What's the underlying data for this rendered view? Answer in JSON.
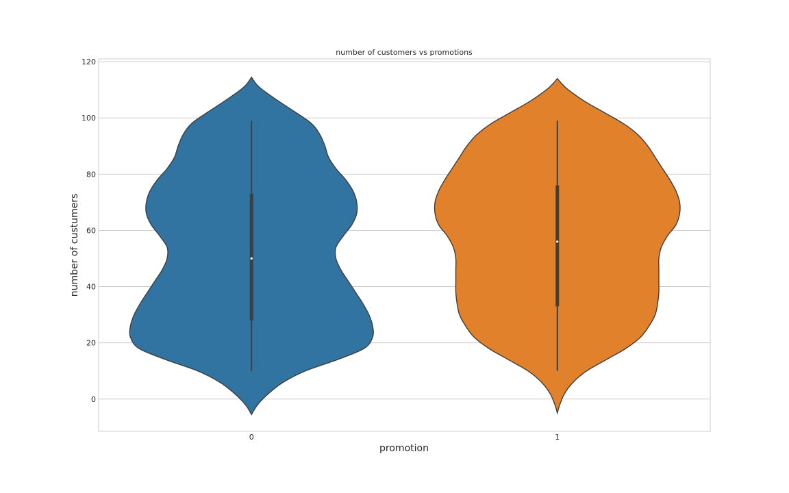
{
  "chart_data": {
    "type": "violin",
    "title": "number of customers vs promotions",
    "xlabel": "promotion",
    "ylabel": "number of custumers",
    "categories": [
      "0",
      "1"
    ],
    "ylim": [
      -11.5,
      121
    ],
    "yticks": [
      0,
      20,
      40,
      60,
      80,
      100,
      120
    ],
    "grid": true,
    "colors": [
      "#3274a1",
      "#e1812c"
    ],
    "series": [
      {
        "category": "0",
        "min": 10,
        "q1": 28,
        "median": 50,
        "q3": 73,
        "max": 99,
        "kde_top": 114.5,
        "kde_bottom": -5.5,
        "density": [
          [
            114.5,
            0.0
          ],
          [
            112,
            0.04
          ],
          [
            110,
            0.09
          ],
          [
            106,
            0.22
          ],
          [
            102,
            0.36
          ],
          [
            98,
            0.49
          ],
          [
            94,
            0.56
          ],
          [
            90,
            0.6
          ],
          [
            86,
            0.63
          ],
          [
            82,
            0.69
          ],
          [
            78,
            0.77
          ],
          [
            74,
            0.83
          ],
          [
            70,
            0.86
          ],
          [
            66,
            0.86
          ],
          [
            62,
            0.82
          ],
          [
            58,
            0.75
          ],
          [
            54,
            0.69
          ],
          [
            50,
            0.69
          ],
          [
            46,
            0.73
          ],
          [
            42,
            0.79
          ],
          [
            38,
            0.85
          ],
          [
            34,
            0.91
          ],
          [
            30,
            0.96
          ],
          [
            26,
            0.99
          ],
          [
            22,
            0.99
          ],
          [
            18,
            0.92
          ],
          [
            14,
            0.7
          ],
          [
            10,
            0.44
          ],
          [
            6,
            0.26
          ],
          [
            2,
            0.14
          ],
          [
            -2,
            0.05
          ],
          [
            -5.5,
            0.0
          ]
        ]
      },
      {
        "category": "1",
        "min": 10,
        "q1": 33,
        "median": 56,
        "q3": 76,
        "max": 99,
        "kde_top": 114,
        "kde_bottom": -5,
        "density": [
          [
            114,
            0.0
          ],
          [
            112,
            0.04
          ],
          [
            110,
            0.09
          ],
          [
            106,
            0.22
          ],
          [
            102,
            0.38
          ],
          [
            98,
            0.54
          ],
          [
            94,
            0.66
          ],
          [
            90,
            0.74
          ],
          [
            86,
            0.8
          ],
          [
            82,
            0.86
          ],
          [
            78,
            0.92
          ],
          [
            74,
            0.97
          ],
          [
            70,
            1.0
          ],
          [
            66,
            1.0
          ],
          [
            62,
            0.97
          ],
          [
            58,
            0.9
          ],
          [
            54,
            0.85
          ],
          [
            50,
            0.83
          ],
          [
            46,
            0.83
          ],
          [
            42,
            0.83
          ],
          [
            38,
            0.83
          ],
          [
            34,
            0.82
          ],
          [
            30,
            0.8
          ],
          [
            26,
            0.75
          ],
          [
            22,
            0.68
          ],
          [
            18,
            0.56
          ],
          [
            14,
            0.4
          ],
          [
            10,
            0.24
          ],
          [
            6,
            0.13
          ],
          [
            2,
            0.06
          ],
          [
            -2,
            0.02
          ],
          [
            -5,
            0.0
          ]
        ]
      }
    ]
  }
}
